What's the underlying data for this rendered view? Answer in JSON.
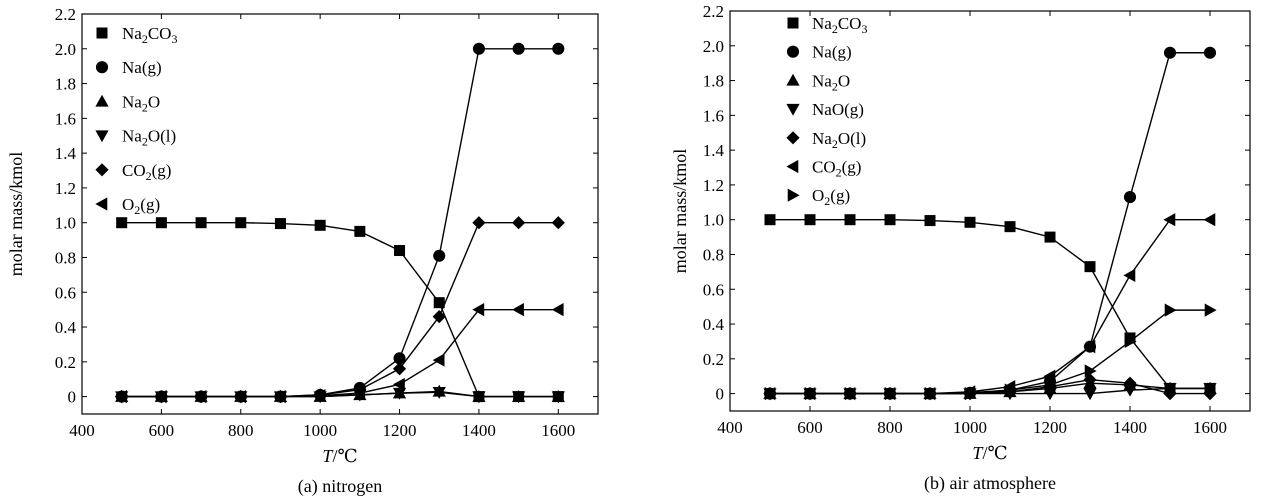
{
  "chart_data": [
    {
      "type": "line",
      "caption": "(a) nitrogen",
      "xlabel": {
        "italic": "T",
        "rest": "/℃"
      },
      "ylabel": "molar mass/kmol",
      "xlim": [
        400,
        1700
      ],
      "ylim": [
        -0.1,
        2.2
      ],
      "xticks": [
        400,
        600,
        800,
        1000,
        1200,
        1400,
        1600
      ],
      "yticks": [
        0,
        0.2,
        0.4,
        0.6,
        0.8,
        1.0,
        1.2,
        1.4,
        1.6,
        1.8,
        2.0,
        2.2
      ],
      "ytick_labels": [
        "0",
        "0.2",
        "0.4",
        "0.6",
        "0.8",
        "1.0",
        "1.2",
        "1.4",
        "1.6",
        "1.8",
        "2.0",
        "2.2"
      ],
      "x": [
        500,
        600,
        700,
        800,
        900,
        1000,
        1100,
        1200,
        1300,
        1400,
        1500,
        1600
      ],
      "series": [
        {
          "name": "Na2CO3",
          "label": [
            [
              "Na",
              false
            ],
            [
              "2",
              true
            ],
            [
              "CO",
              false
            ],
            [
              "3",
              true
            ]
          ],
          "marker": "square",
          "values": [
            1.0,
            1.0,
            1.0,
            1.0,
            0.995,
            0.985,
            0.95,
            0.84,
            0.54,
            0,
            0,
            0
          ]
        },
        {
          "name": "Na(g)",
          "label": [
            [
              "Na(g)",
              false
            ]
          ],
          "marker": "circle",
          "values": [
            0,
            0,
            0,
            0,
            0,
            0.01,
            0.05,
            0.22,
            0.81,
            2.0,
            2.0,
            2.0
          ]
        },
        {
          "name": "Na2O",
          "label": [
            [
              "Na",
              false
            ],
            [
              "2",
              true
            ],
            [
              "O",
              false
            ]
          ],
          "marker": "triangle-up",
          "values": [
            0,
            0,
            0,
            0,
            0,
            0,
            0.01,
            0.02,
            0.03,
            0,
            0,
            0
          ]
        },
        {
          "name": "Na2O(l)",
          "label": [
            [
              "Na",
              false
            ],
            [
              "2",
              true
            ],
            [
              "O(l)",
              false
            ]
          ],
          "marker": "triangle-down",
          "values": [
            0,
            0,
            0,
            0,
            0,
            0,
            0.01,
            0.02,
            0.025,
            0,
            0,
            0
          ]
        },
        {
          "name": "CO2(g)",
          "label": [
            [
              "CO",
              false
            ],
            [
              "2",
              true
            ],
            [
              "(g)",
              false
            ]
          ],
          "marker": "diamond",
          "values": [
            0,
            0,
            0,
            0,
            0,
            0.01,
            0.04,
            0.16,
            0.46,
            1.0,
            1.0,
            1.0
          ]
        },
        {
          "name": "O2(g)",
          "label": [
            [
              "O",
              false
            ],
            [
              "2",
              true
            ],
            [
              "(g)",
              false
            ]
          ],
          "marker": "triangle-left",
          "values": [
            0,
            0,
            0,
            0,
            0,
            0.005,
            0.02,
            0.07,
            0.21,
            0.5,
            0.5,
            0.5
          ]
        }
      ]
    },
    {
      "type": "line",
      "caption": "(b) air atmosphere",
      "xlabel": {
        "italic": "T",
        "rest": "/℃"
      },
      "ylabel": "molar mass/kmol",
      "xlim": [
        400,
        1700
      ],
      "ylim": [
        -0.1,
        2.2
      ],
      "xticks": [
        400,
        600,
        800,
        1000,
        1200,
        1400,
        1600
      ],
      "yticks": [
        0,
        0.2,
        0.4,
        0.6,
        0.8,
        1.0,
        1.2,
        1.4,
        1.6,
        1.8,
        2.0,
        2.2
      ],
      "ytick_labels": [
        "0",
        "0.2",
        "0.4",
        "0.6",
        "0.8",
        "1.0",
        "1.2",
        "1.4",
        "1.6",
        "1.8",
        "2.0",
        "2.2"
      ],
      "x": [
        500,
        600,
        700,
        800,
        900,
        1000,
        1100,
        1200,
        1300,
        1400,
        1500,
        1600
      ],
      "series": [
        {
          "name": "Na2CO3",
          "label": [
            [
              "Na",
              false
            ],
            [
              "2",
              true
            ],
            [
              "CO",
              false
            ],
            [
              "3",
              true
            ]
          ],
          "marker": "square",
          "values": [
            1.0,
            1.0,
            1.0,
            1.0,
            0.995,
            0.985,
            0.96,
            0.9,
            0.73,
            0.32,
            0.03,
            0.03
          ]
        },
        {
          "name": "Na(g)",
          "label": [
            [
              "Na(g)",
              false
            ]
          ],
          "marker": "circle",
          "values": [
            0,
            0,
            0,
            0,
            0,
            0.005,
            0.02,
            0.07,
            0.27,
            1.13,
            1.96,
            1.96
          ]
        },
        {
          "name": "Na2O",
          "label": [
            [
              "Na",
              false
            ],
            [
              "2",
              true
            ],
            [
              "O",
              false
            ]
          ],
          "marker": "triangle-up",
          "values": [
            0,
            0,
            0,
            0,
            0,
            0,
            0.01,
            0.03,
            0.06,
            0.05,
            0.03,
            0.03
          ]
        },
        {
          "name": "NaO(g)",
          "label": [
            [
              "NaO(g)",
              false
            ]
          ],
          "marker": "triangle-down",
          "values": [
            0,
            0,
            0,
            0,
            0,
            0,
            0,
            0,
            0,
            0.02,
            0.03,
            0.03
          ]
        },
        {
          "name": "Na2O(l)",
          "label": [
            [
              "Na",
              false
            ],
            [
              "2",
              true
            ],
            [
              "O(l)",
              false
            ]
          ],
          "marker": "diamond",
          "values": [
            0,
            0,
            0,
            0,
            0,
            0,
            0.01,
            0.04,
            0.08,
            0.06,
            0,
            0
          ]
        },
        {
          "name": "CO2(g)",
          "label": [
            [
              "CO",
              false
            ],
            [
              "2",
              true
            ],
            [
              "(g)",
              false
            ]
          ],
          "marker": "triangle-left",
          "values": [
            0,
            0,
            0,
            0,
            0,
            0.01,
            0.04,
            0.1,
            0.27,
            0.68,
            1.0,
            1.0
          ]
        },
        {
          "name": "O2(g)",
          "label": [
            [
              "O",
              false
            ],
            [
              "2",
              true
            ],
            [
              "(g)",
              false
            ]
          ],
          "marker": "triangle-right",
          "values": [
            0,
            0,
            0,
            0,
            0,
            0,
            0.02,
            0.05,
            0.13,
            0.3,
            0.48,
            0.48
          ]
        }
      ]
    }
  ]
}
